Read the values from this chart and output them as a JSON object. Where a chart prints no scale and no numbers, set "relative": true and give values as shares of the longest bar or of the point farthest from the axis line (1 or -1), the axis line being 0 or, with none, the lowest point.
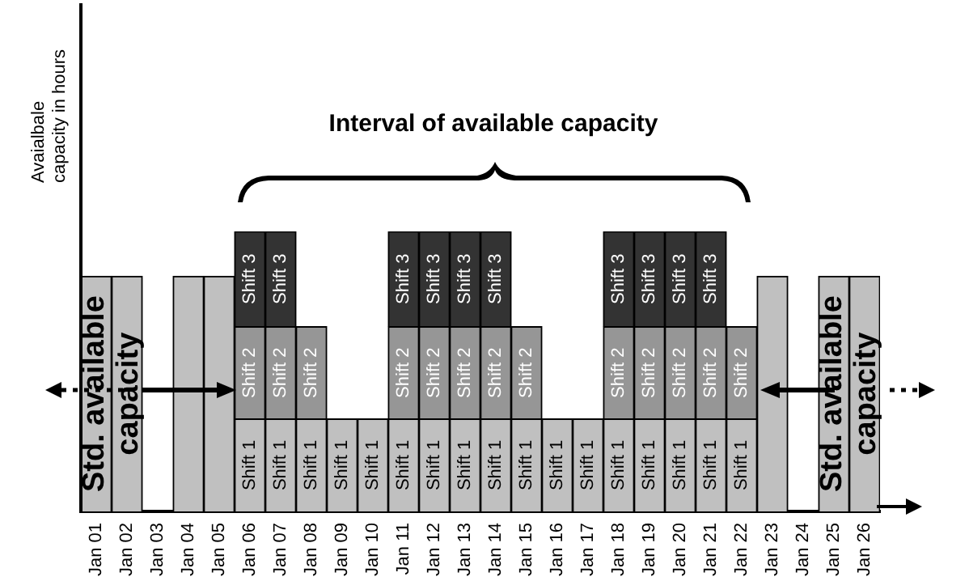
{
  "chart_data": {
    "type": "bar",
    "stacked": true,
    "relative": true,
    "ylabel": "Avaialbale capacity in hours",
    "annotations": [
      "Interval of available capacity"
    ],
    "categories": [
      "Jan 01",
      "Jan 02",
      "Jan 03",
      "Jan 04",
      "Jan 05",
      "Jan 06",
      "Jan 07",
      "Jan 08",
      "Jan 09",
      "Jan 10",
      "Jan 11",
      "Jan 12",
      "Jan 13",
      "Jan 14",
      "Jan 15",
      "Jan 16",
      "Jan 17",
      "Jan 18",
      "Jan 19",
      "Jan 20",
      "Jan 21",
      "Jan 22",
      "Jan 23",
      "Jan 24",
      "Jan 25",
      "Jan 26"
    ],
    "series": [
      {
        "name": "Std. available capacity",
        "color": "#c0c0c0",
        "values": [
          0.84,
          0.84,
          null,
          0.84,
          0.84,
          null,
          null,
          null,
          null,
          null,
          null,
          null,
          null,
          null,
          null,
          null,
          null,
          null,
          null,
          null,
          null,
          null,
          0.84,
          null,
          0.84,
          0.84
        ]
      },
      {
        "name": "Shift 1",
        "color": "#c0c0c0",
        "values": [
          null,
          null,
          null,
          null,
          null,
          0.33,
          0.33,
          0.33,
          0.33,
          0.33,
          0.33,
          0.33,
          0.33,
          0.33,
          0.33,
          0.33,
          0.33,
          0.33,
          0.33,
          0.33,
          0.33,
          0.33,
          null,
          null,
          null,
          null
        ]
      },
      {
        "name": "Shift 2",
        "color": "#969696",
        "values": [
          null,
          null,
          null,
          null,
          null,
          0.33,
          0.33,
          0.33,
          null,
          null,
          0.33,
          0.33,
          0.33,
          0.33,
          0.33,
          null,
          null,
          0.33,
          0.33,
          0.33,
          0.33,
          0.33,
          null,
          null,
          null,
          null
        ]
      },
      {
        "name": "Shift 3",
        "color": "#333333",
        "values": [
          null,
          null,
          null,
          null,
          null,
          0.34,
          0.34,
          null,
          null,
          null,
          0.34,
          0.34,
          0.34,
          0.34,
          null,
          null,
          null,
          0.34,
          0.34,
          0.34,
          0.34,
          null,
          null,
          null,
          null,
          null
        ]
      }
    ]
  }
}
